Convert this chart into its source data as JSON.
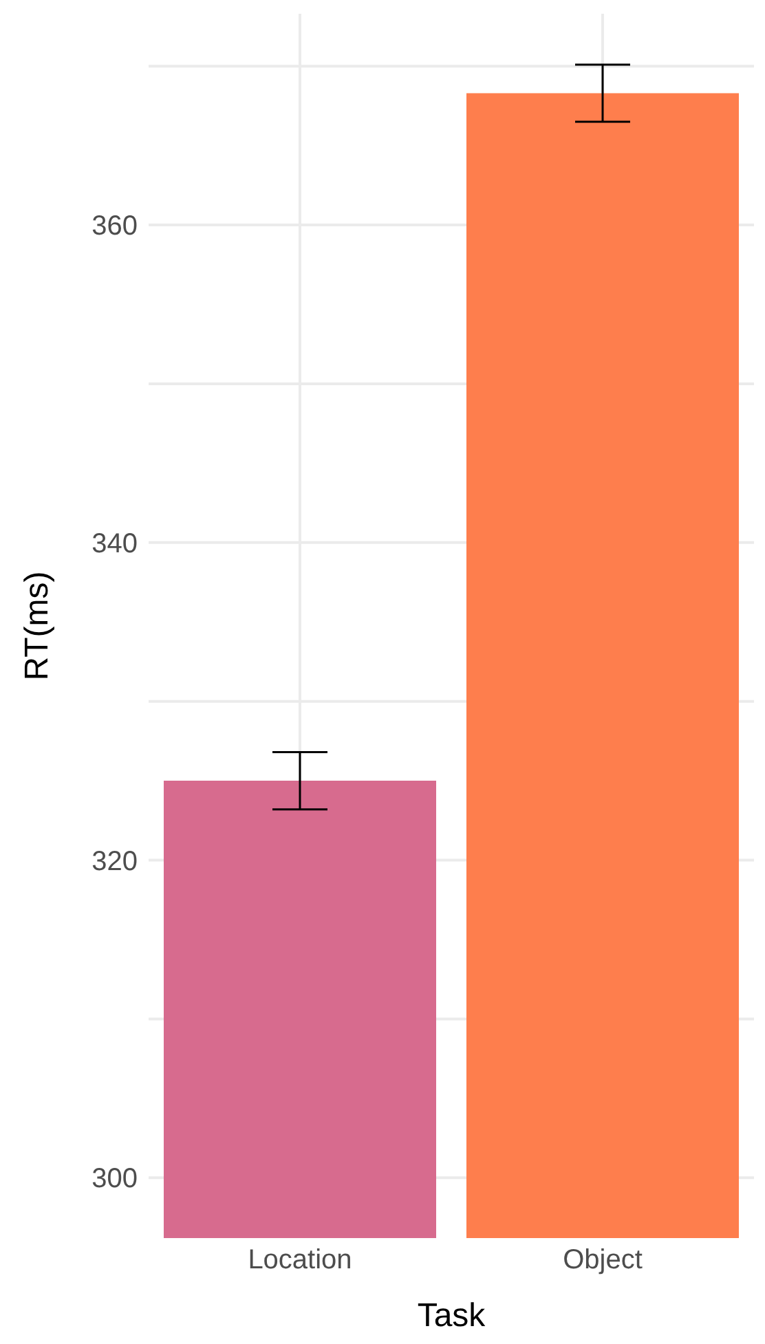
{
  "chart_data": {
    "type": "bar",
    "xlabel": "Task",
    "ylabel": "RT(ms)",
    "categories": [
      "Location",
      "Object"
    ],
    "values": [
      325.0,
      368.3
    ],
    "errors": [
      1.8,
      1.8
    ],
    "colors": [
      "#d76b8e",
      "#fe7e4d"
    ],
    "ylim": [
      296.2,
      373.3
    ],
    "yticks": [
      300,
      {
        "value": 310,
        "label": null
      },
      320,
      {
        "value": 330,
        "label": null
      },
      340,
      {
        "value": 350,
        "label": null
      },
      360,
      {
        "value": 370,
        "label": null
      }
    ],
    "grid": true
  }
}
